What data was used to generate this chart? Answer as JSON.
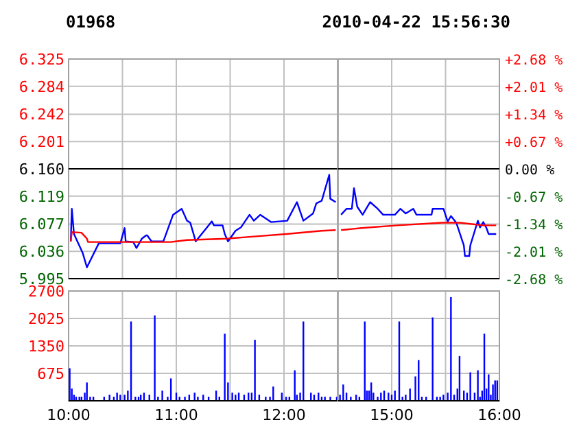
{
  "chart_data": [
    {
      "type": "line",
      "title": "01968",
      "xlim": [
        10,
        12.5
      ],
      "xticks": [
        10,
        10.5,
        11,
        11.5,
        12,
        12.5
      ],
      "ylim": [
        5.995,
        6.325
      ],
      "yticks": [
        5.995,
        6.036,
        6.077,
        6.119,
        {
          "value": 6.16,
          "label": "6.160"
        },
        6.201,
        6.242,
        6.284,
        6.325
      ],
      "grid": true,
      "tick_labels": "y",
      "ref_lines": [
        {
          "axis": "y",
          "value": 6.16,
          "color": "#000000"
        }
      ],
      "series": [
        {
          "color": "#0000ff",
          "x": [
            10.02,
            10.03,
            10.05,
            10.13,
            10.17,
            10.28,
            10.48,
            10.52,
            10.53,
            10.6,
            10.63,
            10.68,
            10.72,
            10.73,
            10.77,
            10.88,
            10.97,
            11.05,
            11.1,
            11.13,
            11.18,
            11.27,
            11.33,
            11.35,
            11.43,
            11.45,
            11.48,
            11.55,
            11.6,
            11.68,
            11.72,
            11.78,
            11.88,
            12.03,
            12.12,
            12.18,
            12.27,
            12.3,
            12.35,
            12.42,
            12.43,
            12.48
          ],
          "values": [
            6.051,
            6.1,
            6.062,
            6.034,
            6.012,
            6.048,
            6.048,
            6.071,
            6.051,
            6.05,
            6.041,
            6.055,
            6.06,
            6.06,
            6.051,
            6.051,
            6.091,
            6.1,
            6.082,
            6.079,
            6.051,
            6.069,
            6.081,
            6.075,
            6.075,
            6.062,
            6.051,
            6.067,
            6.072,
            6.091,
            6.082,
            6.091,
            6.08,
            6.082,
            6.11,
            6.082,
            6.093,
            6.108,
            6.112,
            6.151,
            6.115,
            6.11
          ]
        },
        {
          "color": "#ff0000",
          "x": [
            10.02,
            10.03,
            10.12,
            10.17,
            10.18,
            10.95,
            11.1,
            11.47,
            11.7,
            12.02,
            12.35,
            12.48
          ],
          "values": [
            6.051,
            6.065,
            6.064,
            6.055,
            6.05,
            6.05,
            6.053,
            6.055,
            6.058,
            6.062,
            6.067,
            6.068
          ]
        }
      ]
    },
    {
      "type": "line",
      "title": "2010-04-22 15:56:30",
      "xlim": [
        14.5,
        16
      ],
      "xticks": [
        14.5,
        15,
        15.5,
        16
      ],
      "ylim": [
        5.995,
        6.325
      ],
      "yticks": [
        5.995,
        6.036,
        6.077,
        6.119,
        6.16,
        6.201,
        6.242,
        6.284,
        6.325
      ],
      "y2lim": [
        -2.68,
        2.68
      ],
      "y2ticks": [
        {
          "value": -2.68,
          "label": "-2.68 %"
        },
        {
          "value": -2.01,
          "label": "-2.01 %"
        },
        {
          "value": -1.34,
          "label": "-1.34 %"
        },
        {
          "value": -0.67,
          "label": "-0.67 %"
        },
        {
          "value": 0,
          "label": "0.00 %"
        },
        {
          "value": 0.67,
          "label": "+0.67 %"
        },
        {
          "value": 1.34,
          "label": "+1.34 %"
        },
        {
          "value": 2.01,
          "label": "+2.01 %"
        },
        {
          "value": 2.68,
          "label": "+2.68 %"
        }
      ],
      "grid": true,
      "tick_labels": false,
      "ref_lines": [
        {
          "axis": "y",
          "value": 6.16,
          "color": "#000000"
        }
      ],
      "series": [
        {
          "color": "#0000ff",
          "x": [
            14.53,
            14.58,
            14.63,
            14.65,
            14.68,
            14.73,
            14.8,
            14.87,
            14.92,
            15.03,
            15.08,
            15.13,
            15.2,
            15.23,
            15.37,
            15.38,
            15.48,
            15.52,
            15.55,
            15.6,
            15.67,
            15.68,
            15.72,
            15.73,
            15.8,
            15.82,
            15.85,
            15.88,
            15.9,
            15.97
          ],
          "values": [
            6.091,
            6.1,
            6.1,
            6.131,
            6.103,
            6.091,
            6.11,
            6.1,
            6.091,
            6.091,
            6.1,
            6.093,
            6.1,
            6.091,
            6.091,
            6.1,
            6.1,
            6.081,
            6.089,
            6.079,
            6.045,
            6.029,
            6.029,
            6.045,
            6.082,
            6.072,
            6.08,
            6.071,
            6.062,
            6.062
          ]
        },
        {
          "color": "#ff0000",
          "x": [
            14.53,
            14.72,
            15.05,
            15.47,
            15.63,
            15.85,
            15.97
          ],
          "values": [
            6.068,
            6.071,
            6.075,
            6.079,
            6.079,
            6.075,
            6.075
          ]
        }
      ]
    },
    {
      "type": "bar",
      "color": "#0000ff",
      "x": [
        10.01,
        10.03,
        10.05,
        10.07,
        10.1,
        10.12,
        10.15,
        10.17,
        10.2,
        10.23,
        10.33,
        10.38,
        10.42,
        10.45,
        10.48,
        10.52,
        10.55,
        10.58,
        10.62,
        10.65,
        10.67,
        10.7,
        10.75,
        10.8,
        10.83,
        10.87,
        10.92,
        10.95,
        11,
        11.03,
        11.08,
        11.12,
        11.17,
        11.2,
        11.25,
        11.3,
        11.37,
        11.4,
        11.45,
        11.48,
        11.52,
        11.55,
        11.58,
        11.63,
        11.67,
        11.7,
        11.73,
        11.77,
        11.83,
        11.87,
        11.9,
        11.98,
        12.02,
        12.05,
        12.1,
        12.12,
        12.15,
        12.18,
        12.25,
        12.28,
        12.32,
        12.35,
        12.38,
        12.43,
        12.49
      ],
      "values": [
        800,
        300,
        150,
        100,
        100,
        100,
        200,
        450,
        100,
        100,
        100,
        150,
        100,
        200,
        150,
        150,
        250,
        1950,
        100,
        100,
        150,
        200,
        150,
        2100,
        100,
        250,
        100,
        550,
        200,
        100,
        100,
        150,
        200,
        100,
        150,
        100,
        250,
        100,
        1650,
        450,
        200,
        150,
        200,
        150,
        200,
        200,
        1500,
        150,
        100,
        100,
        350,
        200,
        100,
        100,
        750,
        150,
        200,
        1950,
        200,
        150,
        200,
        100,
        100,
        100,
        100
      ],
      "xlim": [
        10,
        12.5
      ],
      "xticks": [
        {
          "value": 10,
          "label": "10:00"
        },
        {
          "value": 10.5,
          "label": null
        },
        {
          "value": 11,
          "label": "11:00"
        },
        {
          "value": 11.5,
          "label": null
        },
        {
          "value": 12,
          "label": "12:00"
        },
        {
          "value": 12.5,
          "label": null
        }
      ],
      "ylim": [
        0,
        2700
      ],
      "yticks": [
        675,
        1350,
        2025,
        2700
      ],
      "grid": true
    },
    {
      "type": "bar",
      "color": "#0000ff",
      "x": [
        14.52,
        14.55,
        14.58,
        14.62,
        14.67,
        14.7,
        14.75,
        14.77,
        14.79,
        14.81,
        14.83,
        14.87,
        14.9,
        14.93,
        14.97,
        15,
        15.03,
        15.07,
        15.1,
        15.13,
        15.17,
        15.22,
        15.25,
        15.28,
        15.32,
        15.38,
        15.42,
        15.45,
        15.48,
        15.52,
        15.55,
        15.58,
        15.61,
        15.63,
        15.67,
        15.7,
        15.73,
        15.77,
        15.8,
        15.82,
        15.84,
        15.86,
        15.88,
        15.9,
        15.92,
        15.94,
        15.96,
        15.98
      ],
      "values": [
        150,
        400,
        200,
        100,
        150,
        100,
        1950,
        250,
        250,
        450,
        200,
        100,
        200,
        250,
        200,
        150,
        250,
        1950,
        100,
        150,
        300,
        600,
        1000,
        100,
        100,
        2050,
        100,
        100,
        150,
        200,
        2550,
        150,
        300,
        1100,
        250,
        200,
        700,
        200,
        750,
        100,
        250,
        1650,
        300,
        650,
        150,
        400,
        500,
        500
      ],
      "xlim": [
        14.5,
        16
      ],
      "xticks": [
        {
          "value": 14.5,
          "label": null
        },
        {
          "value": 15,
          "label": "15:00"
        },
        {
          "value": 15.5,
          "label": null
        },
        {
          "value": 16,
          "label": "16:00"
        }
      ],
      "ylim": [
        0,
        2700
      ],
      "yticks": [
        675,
        1350,
        2025,
        2700
      ],
      "grid": true,
      "tick_labels": "x"
    }
  ]
}
